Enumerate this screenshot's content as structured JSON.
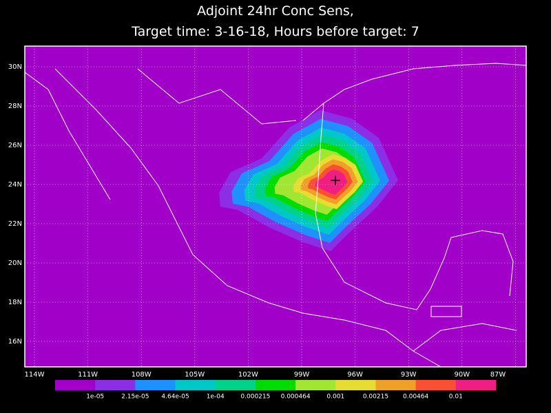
{
  "title": [
    "Adjoint 24hr Conc Sens,",
    "Target time: 3-16-18, Hours before target: 7"
  ],
  "map": {
    "lat_labels": [
      "30N",
      "28N",
      "26N",
      "24N",
      "22N",
      "20N",
      "18N",
      "16N"
    ],
    "lon_labels": [
      "114W",
      "111W",
      "108W",
      "105W",
      "102W",
      "99W",
      "96W",
      "93W",
      "90W",
      "87W"
    ]
  },
  "colorbar": {
    "colors": [
      "#a000c8",
      "#8c2ee6",
      "#1e90ff",
      "#00c8c8",
      "#00d28c",
      "#00dc00",
      "#a0e632",
      "#e6dc32",
      "#f0a028",
      "#fa5032",
      "#f01e82"
    ],
    "labels": [
      "1e-05",
      "2.15e-05",
      "4.64e-05",
      "1e-04",
      "0.000215",
      "0.000464",
      "0.001",
      "0.00215",
      "0.00464",
      "0.01"
    ]
  }
}
